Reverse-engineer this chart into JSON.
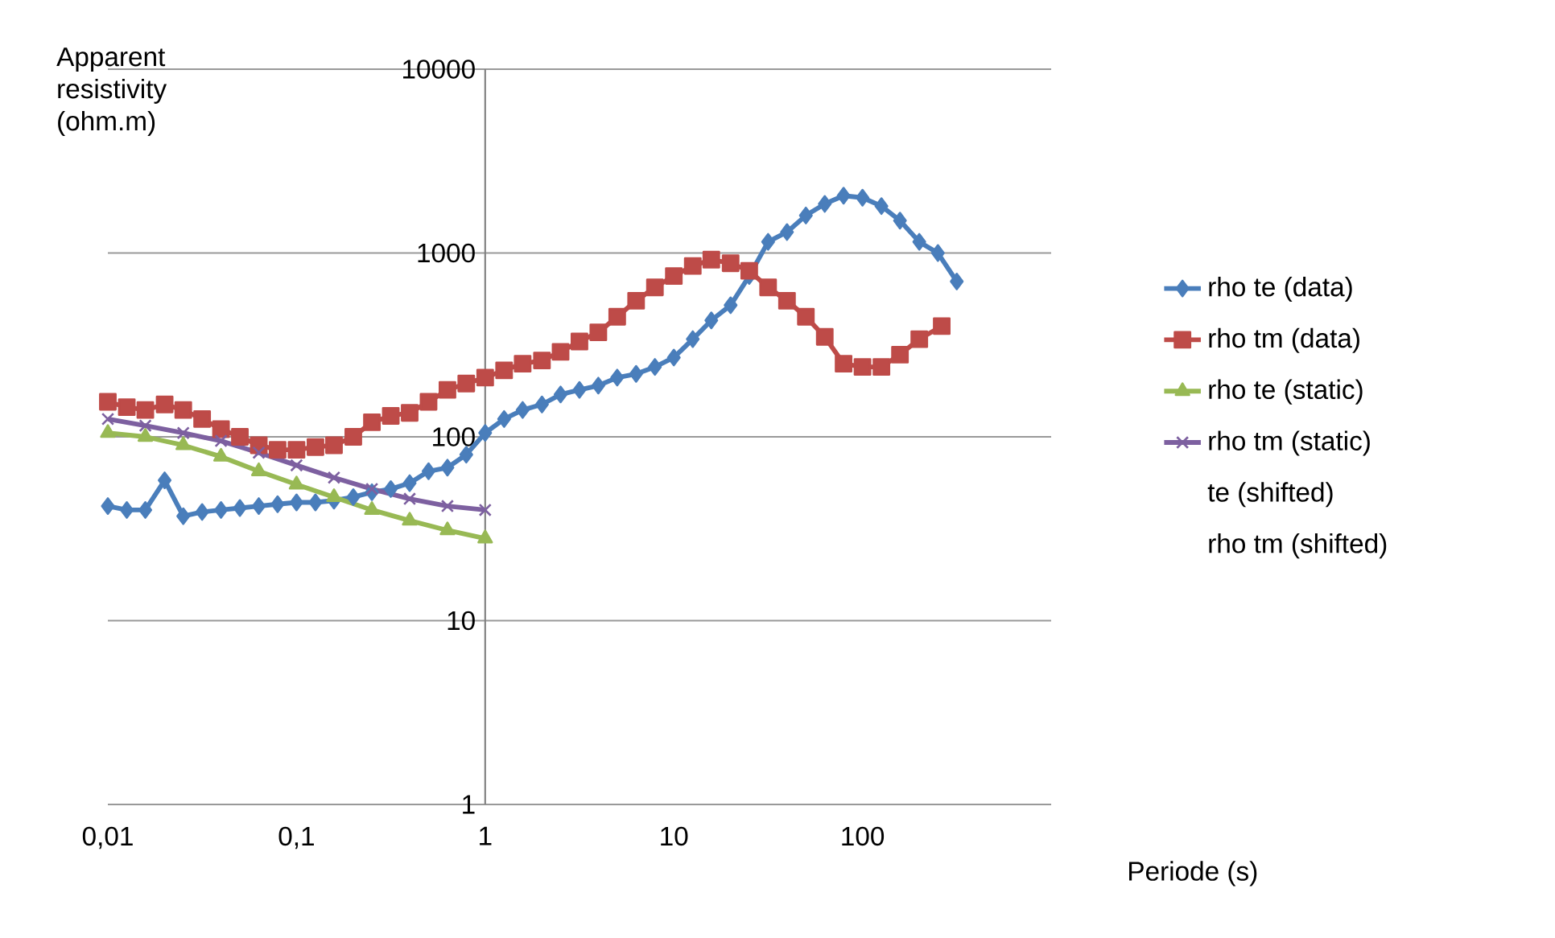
{
  "chart_data": {
    "type": "line",
    "xlabel": "Periode (s)",
    "ylabel": "Apparent resistivity (ohm.m)",
    "log": "xy",
    "grid": "y",
    "legend": "right",
    "xlim": [
      0.01,
      1000
    ],
    "ylim": [
      1,
      10000
    ],
    "xticks": [
      {
        "value": 0.01,
        "label": "0,01"
      },
      {
        "value": 0.1,
        "label": "0,1"
      },
      {
        "value": 1,
        "label": "1"
      },
      {
        "value": 10,
        "label": "10"
      },
      {
        "value": 100,
        "label": "100"
      }
    ],
    "yticks": [
      1,
      10,
      100,
      1000,
      10000
    ],
    "series": [
      {
        "name": "rho te (data)",
        "color": "#4a7ebb",
        "marker": "diamond",
        "x": [
          0.01,
          0.0126,
          0.0158,
          0.02,
          0.0251,
          0.0316,
          0.0398,
          0.0501,
          0.0631,
          0.0794,
          0.1,
          0.126,
          0.158,
          0.2,
          0.251,
          0.316,
          0.398,
          0.501,
          0.631,
          0.794,
          1,
          1.26,
          1.58,
          2,
          2.51,
          3.16,
          3.98,
          5.01,
          6.31,
          7.94,
          10,
          12.6,
          15.8,
          20,
          25.1,
          31.6,
          39.8,
          50.1,
          63.1,
          79.4,
          100,
          126,
          158,
          200,
          251,
          316
        ],
        "values": [
          42,
          40,
          40,
          58,
          37,
          39,
          40,
          41,
          42,
          43,
          44,
          44,
          45,
          47,
          50,
          52,
          56,
          65,
          68,
          80,
          105,
          125,
          140,
          150,
          170,
          180,
          190,
          210,
          220,
          240,
          270,
          340,
          430,
          520,
          750,
          1150,
          1300,
          1600,
          1850,
          2050,
          2000,
          1800,
          1500,
          1150,
          1000,
          700
        ]
      },
      {
        "name": "rho tm (data)",
        "color": "#be4b48",
        "marker": "square",
        "x": [
          0.01,
          0.0126,
          0.0158,
          0.02,
          0.0251,
          0.0316,
          0.0398,
          0.0501,
          0.0631,
          0.0794,
          0.1,
          0.126,
          0.158,
          0.2,
          0.251,
          0.316,
          0.398,
          0.501,
          0.631,
          0.794,
          1,
          1.26,
          1.58,
          2,
          2.51,
          3.16,
          3.98,
          5.01,
          6.31,
          7.94,
          10,
          12.6,
          15.8,
          20,
          25.1,
          31.6,
          39.8,
          50.1,
          63.1,
          79.4,
          100,
          126,
          158,
          200,
          263
        ],
        "values": [
          155,
          145,
          140,
          150,
          140,
          125,
          110,
          100,
          90,
          85,
          85,
          88,
          90,
          100,
          120,
          130,
          135,
          155,
          180,
          195,
          210,
          230,
          250,
          260,
          290,
          330,
          370,
          450,
          550,
          650,
          750,
          850,
          920,
          880,
          800,
          650,
          550,
          450,
          350,
          250,
          240,
          240,
          280,
          340,
          400
        ]
      },
      {
        "name": "rho te (static)",
        "color": "#98b954",
        "marker": "triangle",
        "x": [
          0.01,
          0.0158,
          0.0251,
          0.0398,
          0.0631,
          0.1,
          0.158,
          0.251,
          0.398,
          0.631,
          1
        ],
        "values": [
          105,
          100,
          90,
          78,
          65,
          55,
          47,
          40,
          35,
          31,
          28
        ]
      },
      {
        "name": "rho tm (static)",
        "color": "#7d60a0",
        "marker": "cross",
        "x": [
          0.01,
          0.0158,
          0.0251,
          0.0398,
          0.0631,
          0.1,
          0.158,
          0.251,
          0.398,
          0.631,
          1
        ],
        "values": [
          125,
          115,
          105,
          95,
          82,
          70,
          60,
          52,
          46,
          42,
          40
        ]
      },
      {
        "name": "te (shifted)",
        "marker": "none"
      },
      {
        "name": "rho tm (shifted)",
        "marker": "none"
      }
    ]
  }
}
